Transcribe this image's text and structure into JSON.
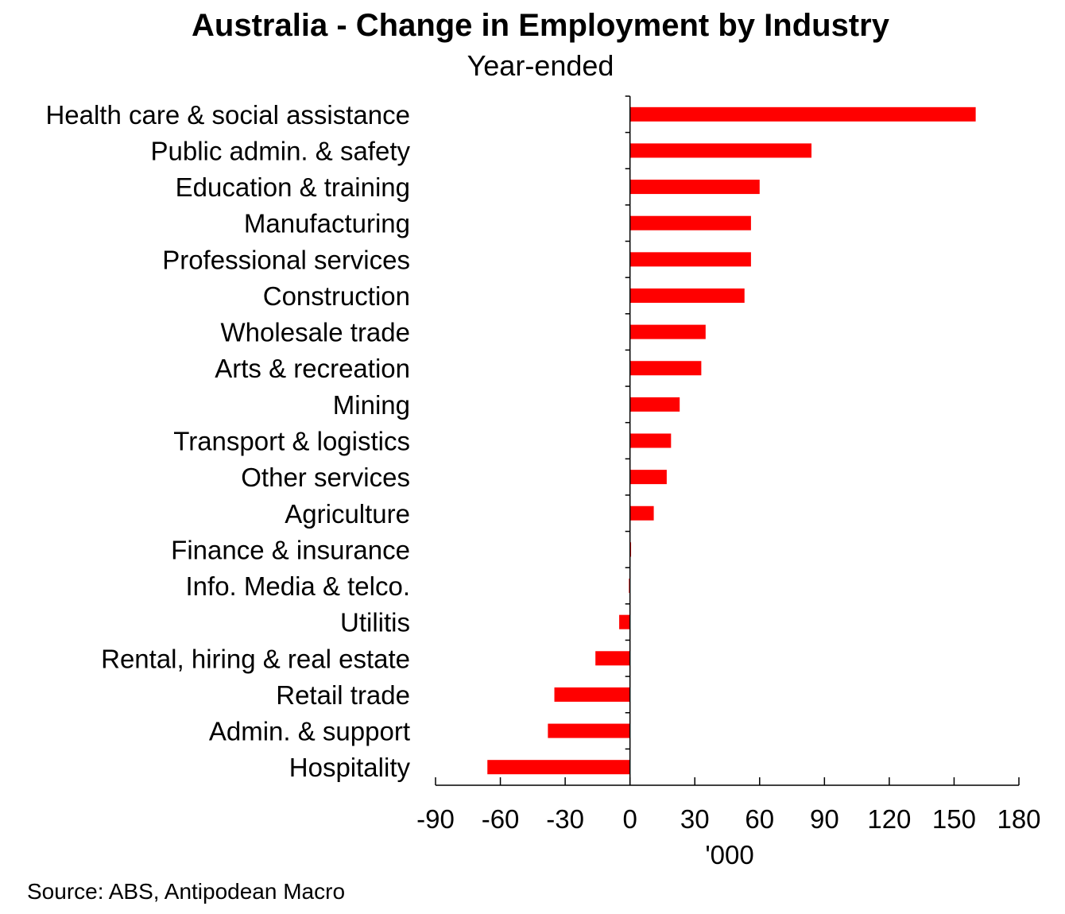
{
  "title": "Australia - Change in Employment by Industry",
  "subtitle": "Year-ended",
  "source": "Source: ABS, Antipodean Macro",
  "chart_data": {
    "type": "bar",
    "orientation": "horizontal",
    "title": "Australia - Change in Employment by Industry",
    "subtitle": "Year-ended",
    "xlabel": "'000",
    "ylabel": "",
    "xlim": [
      -90,
      180
    ],
    "x_ticks": [
      -90,
      -60,
      -30,
      0,
      30,
      60,
      90,
      120,
      150,
      180
    ],
    "x_tick_labels": [
      "-90",
      "-60",
      "-30",
      "0",
      "30",
      "60",
      "90",
      "120",
      "150",
      "180"
    ],
    "categories": [
      "Health care & social assistance",
      "Public admin. & safety",
      "Education & training",
      "Manufacturing",
      "Professional services",
      "Construction",
      "Wholesale trade",
      "Arts & recreation",
      "Mining",
      "Transport & logistics",
      "Other services",
      "Agriculture",
      "Finance & insurance",
      "Info. Media & telco.",
      "Utilitis",
      "Rental, hiring & real estate",
      "Retail trade",
      "Admin. & support",
      "Hospitality"
    ],
    "values": [
      160,
      84,
      60,
      56,
      56,
      53,
      35,
      33,
      23,
      19,
      17,
      11,
      0.5,
      -0.5,
      -5,
      -16,
      -35,
      -38,
      -66
    ],
    "bar_color": "#ff0000",
    "grid": false,
    "legend": "none"
  }
}
